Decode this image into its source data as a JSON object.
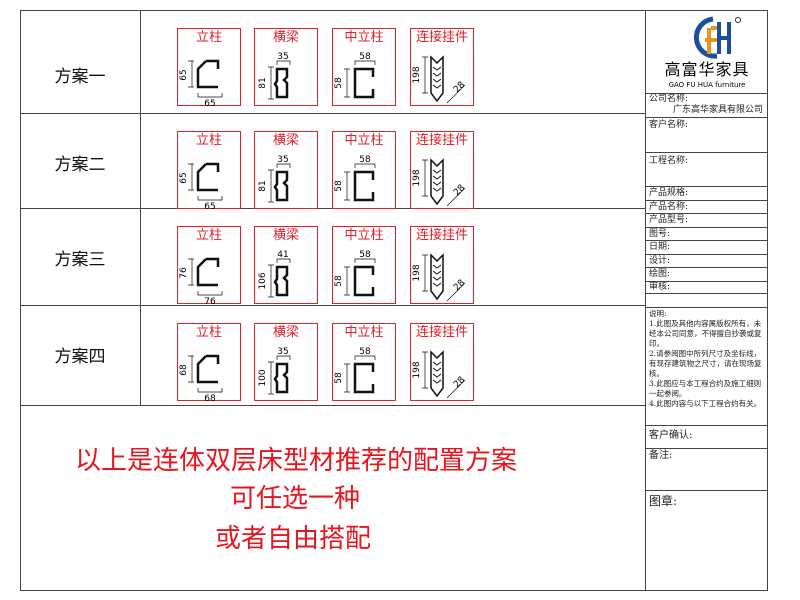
{
  "rows": [
    {
      "label": "方案一",
      "profiles": [
        {
          "name": "立柱",
          "dims": [
            "65",
            "65"
          ]
        },
        {
          "name": "横梁",
          "dims": [
            "35",
            "81"
          ]
        },
        {
          "name": "中立柱",
          "dims": [
            "58",
            "58"
          ]
        },
        {
          "name": "连接挂件",
          "dims": [
            "198",
            "28"
          ]
        }
      ]
    },
    {
      "label": "方案二",
      "profiles": [
        {
          "name": "立柱",
          "dims": [
            "65",
            "65"
          ]
        },
        {
          "name": "横梁",
          "dims": [
            "35",
            "81"
          ]
        },
        {
          "name": "中立柱",
          "dims": [
            "58",
            "58"
          ]
        },
        {
          "name": "连接挂件",
          "dims": [
            "198",
            "28"
          ]
        }
      ]
    },
    {
      "label": "方案三",
      "profiles": [
        {
          "name": "立柱",
          "dims": [
            "76",
            "76"
          ]
        },
        {
          "name": "横梁",
          "dims": [
            "41",
            "106"
          ]
        },
        {
          "name": "中立柱",
          "dims": [
            "58",
            "58"
          ]
        },
        {
          "name": "连接挂件",
          "dims": [
            "198",
            "28"
          ]
        }
      ]
    },
    {
      "label": "方案四",
      "profiles": [
        {
          "name": "立柱",
          "dims": [
            "68",
            "68"
          ]
        },
        {
          "name": "横梁",
          "dims": [
            "35",
            "100"
          ]
        },
        {
          "name": "中立柱",
          "dims": [
            "58",
            "58"
          ]
        },
        {
          "name": "连接挂件",
          "dims": [
            "198",
            "28"
          ]
        }
      ]
    }
  ],
  "message": {
    "line1": "以上是连体双层床型材推荐的配置方案",
    "line2": "可任选一种",
    "line3": "或者自由搭配"
  },
  "title_block": {
    "logo_text": "高富华家具",
    "logo_sub": "GAO FU HUA furniture",
    "company_label": "公司名称:",
    "company_value": "广东高华家具有限公司",
    "client_label": "客户名称:",
    "project_label": "工程名称:",
    "spec_label": "产品规格:",
    "product_label": "产品名称:",
    "model_label": "产品型号:",
    "drawing_no_label": "图号:",
    "date_label": "日期:",
    "design_label": "设计:",
    "draw_label": "绘图:",
    "review_label": "审核:",
    "notes_title": "说明:",
    "notes": [
      "1.此图及其他内容属版权所有，未经本公司同意，不得擅自抄袭或复印。",
      "2.请参阅图中所列尺寸及坐标线，有现存建筑物之尺寸，请在现场复核。",
      "3.此图应与本工程合约及施工细则一起参阅。",
      "4.此图内容与以下工程合约有关。"
    ],
    "confirm_label": "客户确认:",
    "remark_label": "备注:",
    "stamp_label": "图章:"
  },
  "colors": {
    "accent": "#e0202a",
    "logo_blue": "#1a4f9c",
    "logo_orange": "#e8961e"
  }
}
